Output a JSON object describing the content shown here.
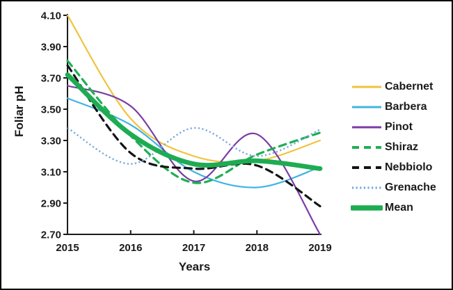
{
  "figure": {
    "background": "#ffffff",
    "border_color": "#000000",
    "text_color": "#1a1a1a"
  },
  "chart_data": {
    "type": "line",
    "smoothed": true,
    "grid": false,
    "legend_position": "right",
    "xlabel": "Years",
    "ylabel": "Foliar pH",
    "x": [
      2015,
      2016,
      2017,
      2018,
      2019
    ],
    "x_tick_labels": [
      "2015",
      "2016",
      "2017",
      "2018",
      "2019"
    ],
    "ylim": [
      2.7,
      4.1
    ],
    "y_ticks": [
      4.1,
      3.9,
      3.7,
      3.5,
      3.3,
      3.1,
      2.9,
      2.7
    ],
    "y_tick_labels": [
      "4.10",
      "3.90",
      "3.70",
      "3.50",
      "3.30",
      "3.10",
      "2.90",
      "2.70"
    ],
    "series": [
      {
        "name": "Cabernet",
        "color": "#F0C33C",
        "style": "solid",
        "width": 2.2,
        "values": [
          4.1,
          3.44,
          3.2,
          3.17,
          3.3
        ]
      },
      {
        "name": "Barbera",
        "color": "#3FB4E4",
        "style": "solid",
        "width": 2.2,
        "values": [
          3.57,
          3.4,
          3.1,
          3.0,
          3.13
        ]
      },
      {
        "name": "Pinot",
        "color": "#7A3CA5",
        "style": "solid",
        "width": 2.2,
        "values": [
          3.65,
          3.52,
          3.04,
          3.34,
          2.7
        ]
      },
      {
        "name": "Shiraz",
        "color": "#1FAF54",
        "style": "dashed",
        "width": 3.2,
        "values": [
          3.81,
          3.33,
          3.03,
          3.21,
          3.35
        ]
      },
      {
        "name": "Nebbiolo",
        "color": "#141414",
        "style": "dashed",
        "width": 3.2,
        "values": [
          3.78,
          3.22,
          3.12,
          3.14,
          2.88
        ]
      },
      {
        "name": "Grenache",
        "color": "#76A9DB",
        "style": "dotted",
        "width": 2.4,
        "values": [
          3.38,
          3.15,
          3.38,
          3.2,
          3.37
        ]
      },
      {
        "name": "Mean",
        "color": "#1EAC52",
        "style": "solid",
        "width": 6.8,
        "values": [
          3.72,
          3.34,
          3.15,
          3.17,
          3.12
        ]
      }
    ]
  }
}
